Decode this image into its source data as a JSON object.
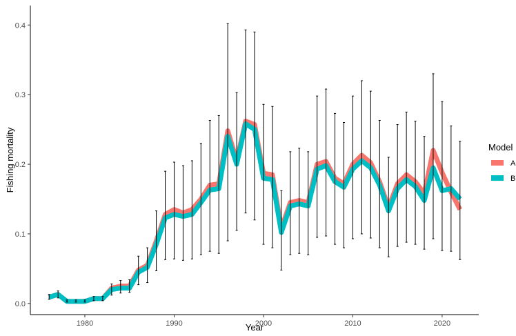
{
  "chart_data": {
    "type": "line",
    "title": "",
    "xlabel": "Year",
    "ylabel": "Fishing mortality",
    "xlim": [
      1973.9,
      2024.1
    ],
    "ylim": [
      -0.016,
      0.428
    ],
    "x_ticks": [
      1980,
      1990,
      2000,
      2010,
      2020
    ],
    "y_ticks": [
      0.0,
      0.1,
      0.2,
      0.3,
      0.4
    ],
    "y_tick_labels": [
      "0.0",
      "0.1",
      "0.2",
      "0.3",
      "0.4"
    ],
    "grid": false,
    "legend": {
      "title": "Model",
      "placement": "right"
    },
    "x": [
      1976,
      1977,
      1978,
      1979,
      1980,
      1981,
      1982,
      1983,
      1984,
      1985,
      1986,
      1987,
      1988,
      1989,
      1990,
      1991,
      1992,
      1993,
      1994,
      1995,
      1996,
      1997,
      1998,
      1999,
      2000,
      2001,
      2002,
      2003,
      2004,
      2005,
      2006,
      2007,
      2008,
      2009,
      2010,
      2011,
      2012,
      2013,
      2014,
      2015,
      2016,
      2017,
      2018,
      2019,
      2020,
      2021,
      2022
    ],
    "series": [
      {
        "name": "A",
        "color": "#F8766D",
        "values": [
          0.009,
          0.013,
          0.003,
          0.003,
          0.003,
          0.007,
          0.007,
          0.022,
          0.025,
          0.025,
          0.048,
          0.055,
          0.09,
          0.128,
          0.135,
          0.13,
          0.135,
          0.15,
          0.17,
          0.172,
          0.248,
          0.205,
          0.262,
          0.257,
          0.187,
          0.185,
          0.108,
          0.145,
          0.148,
          0.145,
          0.2,
          0.204,
          0.18,
          0.172,
          0.2,
          0.213,
          0.202,
          0.175,
          0.138,
          0.172,
          0.185,
          0.175,
          0.158,
          0.22,
          0.188,
          0.16,
          0.135
        ]
      },
      {
        "name": "B",
        "color": "#00BFC4",
        "values": [
          0.009,
          0.013,
          0.003,
          0.003,
          0.003,
          0.007,
          0.007,
          0.02,
          0.022,
          0.022,
          0.045,
          0.052,
          0.085,
          0.123,
          0.128,
          0.125,
          0.128,
          0.145,
          0.163,
          0.165,
          0.24,
          0.2,
          0.258,
          0.25,
          0.18,
          0.178,
          0.102,
          0.14,
          0.143,
          0.14,
          0.193,
          0.198,
          0.175,
          0.167,
          0.193,
          0.205,
          0.195,
          0.17,
          0.133,
          0.165,
          0.178,
          0.168,
          0.148,
          0.195,
          0.162,
          0.165,
          0.15
        ]
      }
    ],
    "error_bars": {
      "lower": [
        0.006,
        0.008,
        0.002,
        0.002,
        0.002,
        0.004,
        0.004,
        0.012,
        0.015,
        0.016,
        0.027,
        0.03,
        0.047,
        0.063,
        0.064,
        0.062,
        0.064,
        0.07,
        0.075,
        0.072,
        0.09,
        0.105,
        0.13,
        0.12,
        0.085,
        0.08,
        0.048,
        0.07,
        0.072,
        0.07,
        0.095,
        0.097,
        0.085,
        0.08,
        0.093,
        0.1,
        0.094,
        0.08,
        0.067,
        0.082,
        0.088,
        0.085,
        0.078,
        0.093,
        0.076,
        0.075,
        0.063
      ],
      "upper": [
        0.013,
        0.018,
        0.005,
        0.005,
        0.005,
        0.01,
        0.01,
        0.028,
        0.033,
        0.034,
        0.068,
        0.08,
        0.133,
        0.19,
        0.203,
        0.198,
        0.205,
        0.23,
        0.263,
        0.27,
        0.402,
        0.303,
        0.393,
        0.39,
        0.286,
        0.283,
        0.162,
        0.218,
        0.223,
        0.218,
        0.298,
        0.308,
        0.273,
        0.26,
        0.298,
        0.32,
        0.305,
        0.263,
        0.21,
        0.257,
        0.275,
        0.262,
        0.24,
        0.33,
        0.29,
        0.255,
        0.233
      ]
    }
  }
}
